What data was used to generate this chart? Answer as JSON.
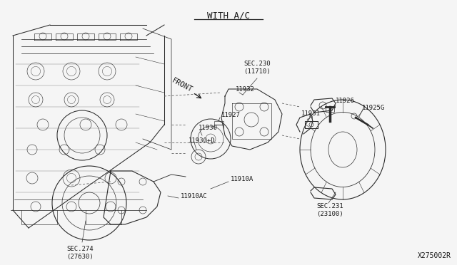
{
  "title": "WITH A/C",
  "background_color": "#f5f5f5",
  "line_color": "#2a2a2a",
  "text_color": "#1a1a1a",
  "fig_width": 6.4,
  "fig_height": 3.72,
  "dpi": 100,
  "diagram_number": "X275002R",
  "labels": {
    "title": "WITH A/C",
    "front_label": "FRONT",
    "sec230": "SEC.230\n(11710)",
    "sec231": "SEC.231\n(23100)",
    "sec274": "SEC.274\n(27630)",
    "p11926": "11926",
    "p11931": "11931",
    "p11925g": "11925G",
    "p11932": "11932",
    "p11927": "11927",
    "p11930": "11930",
    "p11930d": "11930+D",
    "p11910a": "11910A",
    "p11910ac": "11910AC"
  }
}
